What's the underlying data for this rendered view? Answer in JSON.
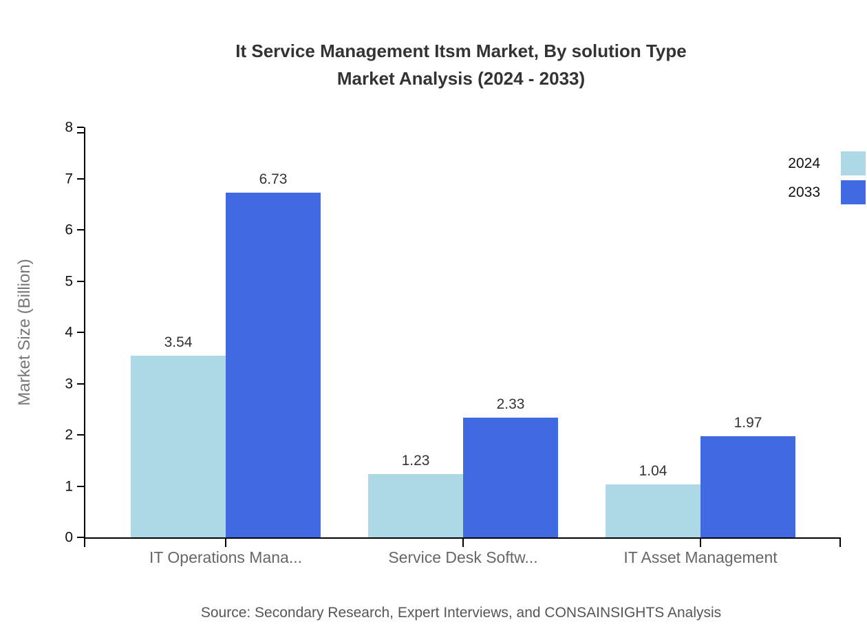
{
  "title": {
    "line1": "It Service Management Itsm Market, By solution Type",
    "line2": "Market Analysis (2024 - 2033)"
  },
  "legend": [
    {
      "label": "2024",
      "color": "#ADD8E6"
    },
    {
      "label": "2033",
      "color": "#4169E1"
    }
  ],
  "y_axis": {
    "title": "Market Size (Billion)"
  },
  "source": "Source: Secondary Research, Expert Interviews, and CONSAINSIGHTS Analysis",
  "chart_data": {
    "type": "bar",
    "title": "It Service Management Itsm Market, By solution Type Market Analysis (2024 - 2033)",
    "categories": [
      "IT Operations Mana...",
      "Service Desk Softw...",
      "IT Asset Management"
    ],
    "series": [
      {
        "name": "2024",
        "color": "#ADD8E6",
        "values": [
          3.54,
          1.23,
          1.04
        ]
      },
      {
        "name": "2033",
        "color": "#4169E1",
        "values": [
          6.73,
          2.33,
          1.97
        ]
      }
    ],
    "xlabel": "",
    "ylabel": "Market Size (Billion)",
    "ylim": [
      0,
      8
    ],
    "yticks": [
      0,
      1,
      2,
      3,
      4,
      5,
      6,
      7,
      8
    ],
    "grid": false,
    "legend_position": "top-right",
    "value_labels": true,
    "bar_colors": {
      "2024": "#ADD8E6",
      "2033": "#4169E1"
    }
  }
}
